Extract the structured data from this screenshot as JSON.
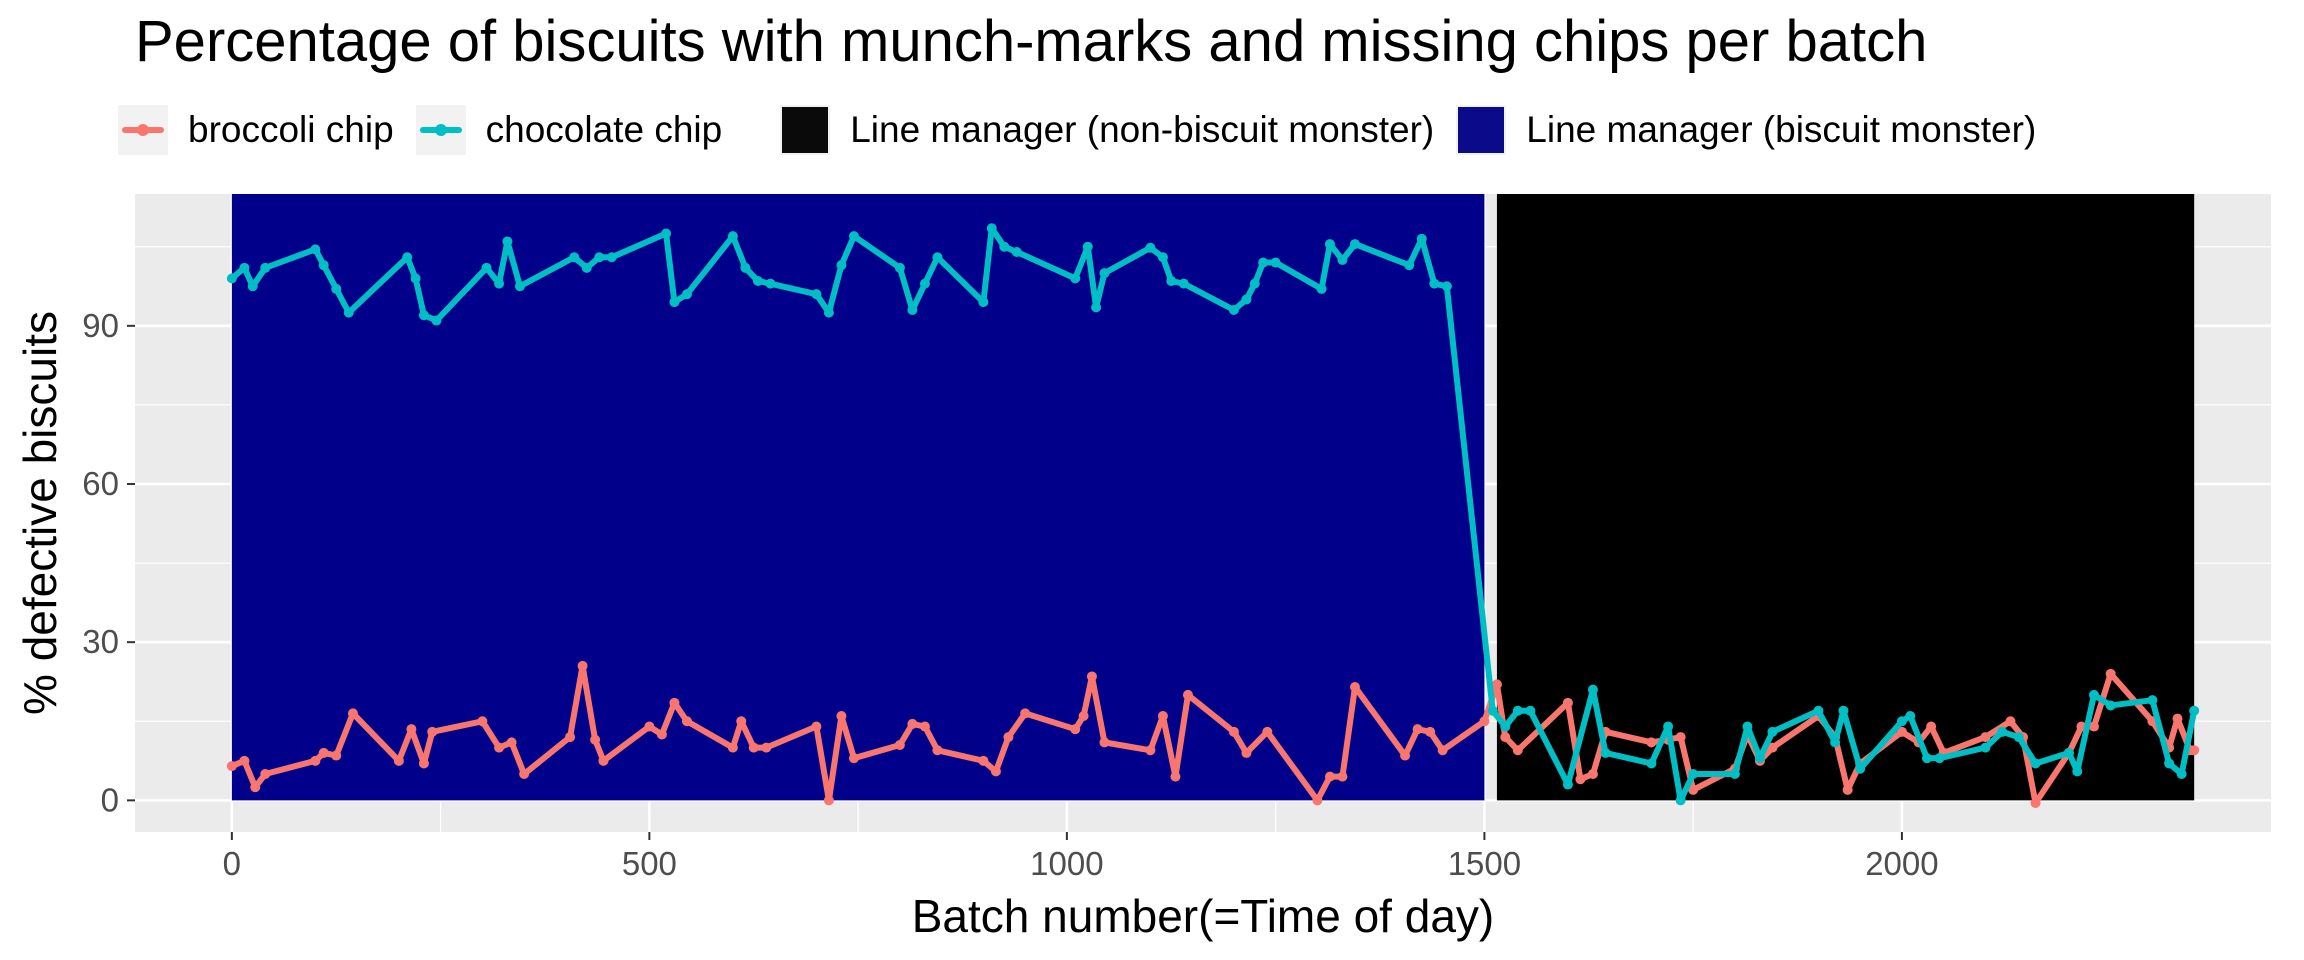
{
  "chart_data": {
    "type": "line",
    "title": "Percentage of biscuits with munch-marks and missing chips per batch",
    "xlabel": "Batch number(=Time of day)",
    "ylabel": "% defective biscuits",
    "xlim": [
      -116,
      2442
    ],
    "ylim": [
      -6,
      115
    ],
    "xticks": [
      0,
      500,
      1000,
      1500,
      2000
    ],
    "xtick_labels": [
      "0",
      "500",
      "1000",
      "1500",
      "2000"
    ],
    "yticks": [
      0,
      30,
      60,
      90
    ],
    "ytick_labels": [
      "0",
      "30",
      "60",
      "90"
    ],
    "grid": true,
    "legend_position": "top",
    "background_regions": [
      {
        "name": "Line manager (biscuit monster)",
        "color": "#00008B",
        "xmin": 0,
        "xmax": 1500
      },
      {
        "name": "Line manager (non-biscuit monster)",
        "color": "#000000",
        "xmin": 1515,
        "xmax": 2350
      }
    ],
    "series": [
      {
        "name": "broccoli chip",
        "color": "#F8766D",
        "x": [
          0,
          15,
          28,
          40,
          100,
          110,
          125,
          145,
          200,
          215,
          230,
          240,
          300,
          320,
          335,
          350,
          405,
          420,
          435,
          445,
          500,
          515,
          530,
          545,
          600,
          610,
          625,
          640,
          700,
          715,
          730,
          745,
          800,
          815,
          830,
          845,
          900,
          915,
          930,
          950,
          1010,
          1020,
          1030,
          1045,
          1100,
          1115,
          1130,
          1145,
          1200,
          1215,
          1240,
          1300,
          1315,
          1330,
          1345,
          1405,
          1420,
          1435,
          1450,
          1500,
          1515,
          1525,
          1540,
          1600,
          1615,
          1630,
          1645,
          1700,
          1720,
          1735,
          1750,
          1800,
          1815,
          1830,
          1845,
          1900,
          1920,
          1935,
          1950,
          2000,
          2020,
          2035,
          2050,
          2100,
          2130,
          2145,
          2160,
          2200,
          2215,
          2230,
          2250,
          2300,
          2320,
          2330,
          2345,
          2350
        ],
        "values": [
          6.5,
          7.5,
          2.5,
          5,
          7.5,
          9,
          8.5,
          16.5,
          7.5,
          13.5,
          7,
          13,
          15,
          10,
          11,
          5,
          12,
          25.5,
          11.5,
          7.5,
          14,
          12.5,
          18.5,
          15,
          10,
          15,
          10,
          10,
          14,
          0,
          16,
          8,
          10.5,
          14.5,
          14,
          9.5,
          7.5,
          5.5,
          12,
          16.5,
          13.5,
          16,
          23.5,
          11,
          9.5,
          16,
          4.5,
          20,
          13,
          9,
          13,
          0,
          4.5,
          4.5,
          21.5,
          8.5,
          13.5,
          13,
          9.5,
          15,
          22,
          12,
          9.5,
          18.5,
          4,
          5,
          13,
          11,
          11.5,
          12,
          2,
          6,
          12.5,
          7.5,
          10,
          16,
          12,
          2,
          7,
          13,
          11,
          14,
          9,
          12,
          15,
          12,
          -0.5,
          9,
          14,
          14,
          24,
          15,
          10,
          15.5,
          9.5,
          9.5
        ]
      },
      {
        "name": "chocolate chip",
        "color": "#00BFC4",
        "x": [
          0,
          15,
          25,
          40,
          100,
          110,
          125,
          140,
          210,
          220,
          230,
          245,
          305,
          320,
          330,
          345,
          410,
          425,
          440,
          455,
          520,
          530,
          545,
          600,
          615,
          630,
          645,
          700,
          715,
          730,
          745,
          800,
          815,
          830,
          845,
          900,
          910,
          925,
          940,
          1010,
          1025,
          1035,
          1045,
          1100,
          1115,
          1125,
          1140,
          1200,
          1215,
          1225,
          1235,
          1250,
          1305,
          1315,
          1330,
          1345,
          1410,
          1425,
          1440,
          1455,
          1510,
          1525,
          1540,
          1555,
          1600,
          1630,
          1645,
          1700,
          1720,
          1735,
          1750,
          1800,
          1815,
          1830,
          1845,
          1900,
          1920,
          1930,
          1950,
          2000,
          2010,
          2030,
          2045,
          2100,
          2120,
          2140,
          2160,
          2200,
          2210,
          2230,
          2250,
          2300,
          2320,
          2335,
          2350
        ],
        "values": [
          99,
          101,
          97.5,
          101,
          104.5,
          101.5,
          97,
          92.5,
          103,
          99,
          92,
          91,
          101,
          98,
          106,
          97.5,
          103,
          101,
          103,
          103,
          107.5,
          94.5,
          96,
          107,
          101,
          98.5,
          98,
          96,
          92.5,
          101.5,
          107,
          101,
          93,
          98,
          103,
          94.5,
          108.5,
          105,
          104,
          99,
          105,
          93.5,
          100,
          104.8,
          103,
          98.5,
          98,
          93,
          95,
          98,
          102,
          102,
          97,
          105.5,
          102.5,
          105.5,
          101.5,
          106.5,
          98,
          97.5,
          17,
          14,
          17,
          17,
          3,
          21,
          9,
          7,
          14,
          0,
          5,
          5,
          14,
          8,
          13,
          17,
          11,
          17,
          6,
          15,
          16,
          8,
          8,
          10,
          13,
          12,
          7,
          9,
          5.5,
          20,
          18,
          19,
          7,
          5,
          17
        ]
      }
    ]
  }
}
